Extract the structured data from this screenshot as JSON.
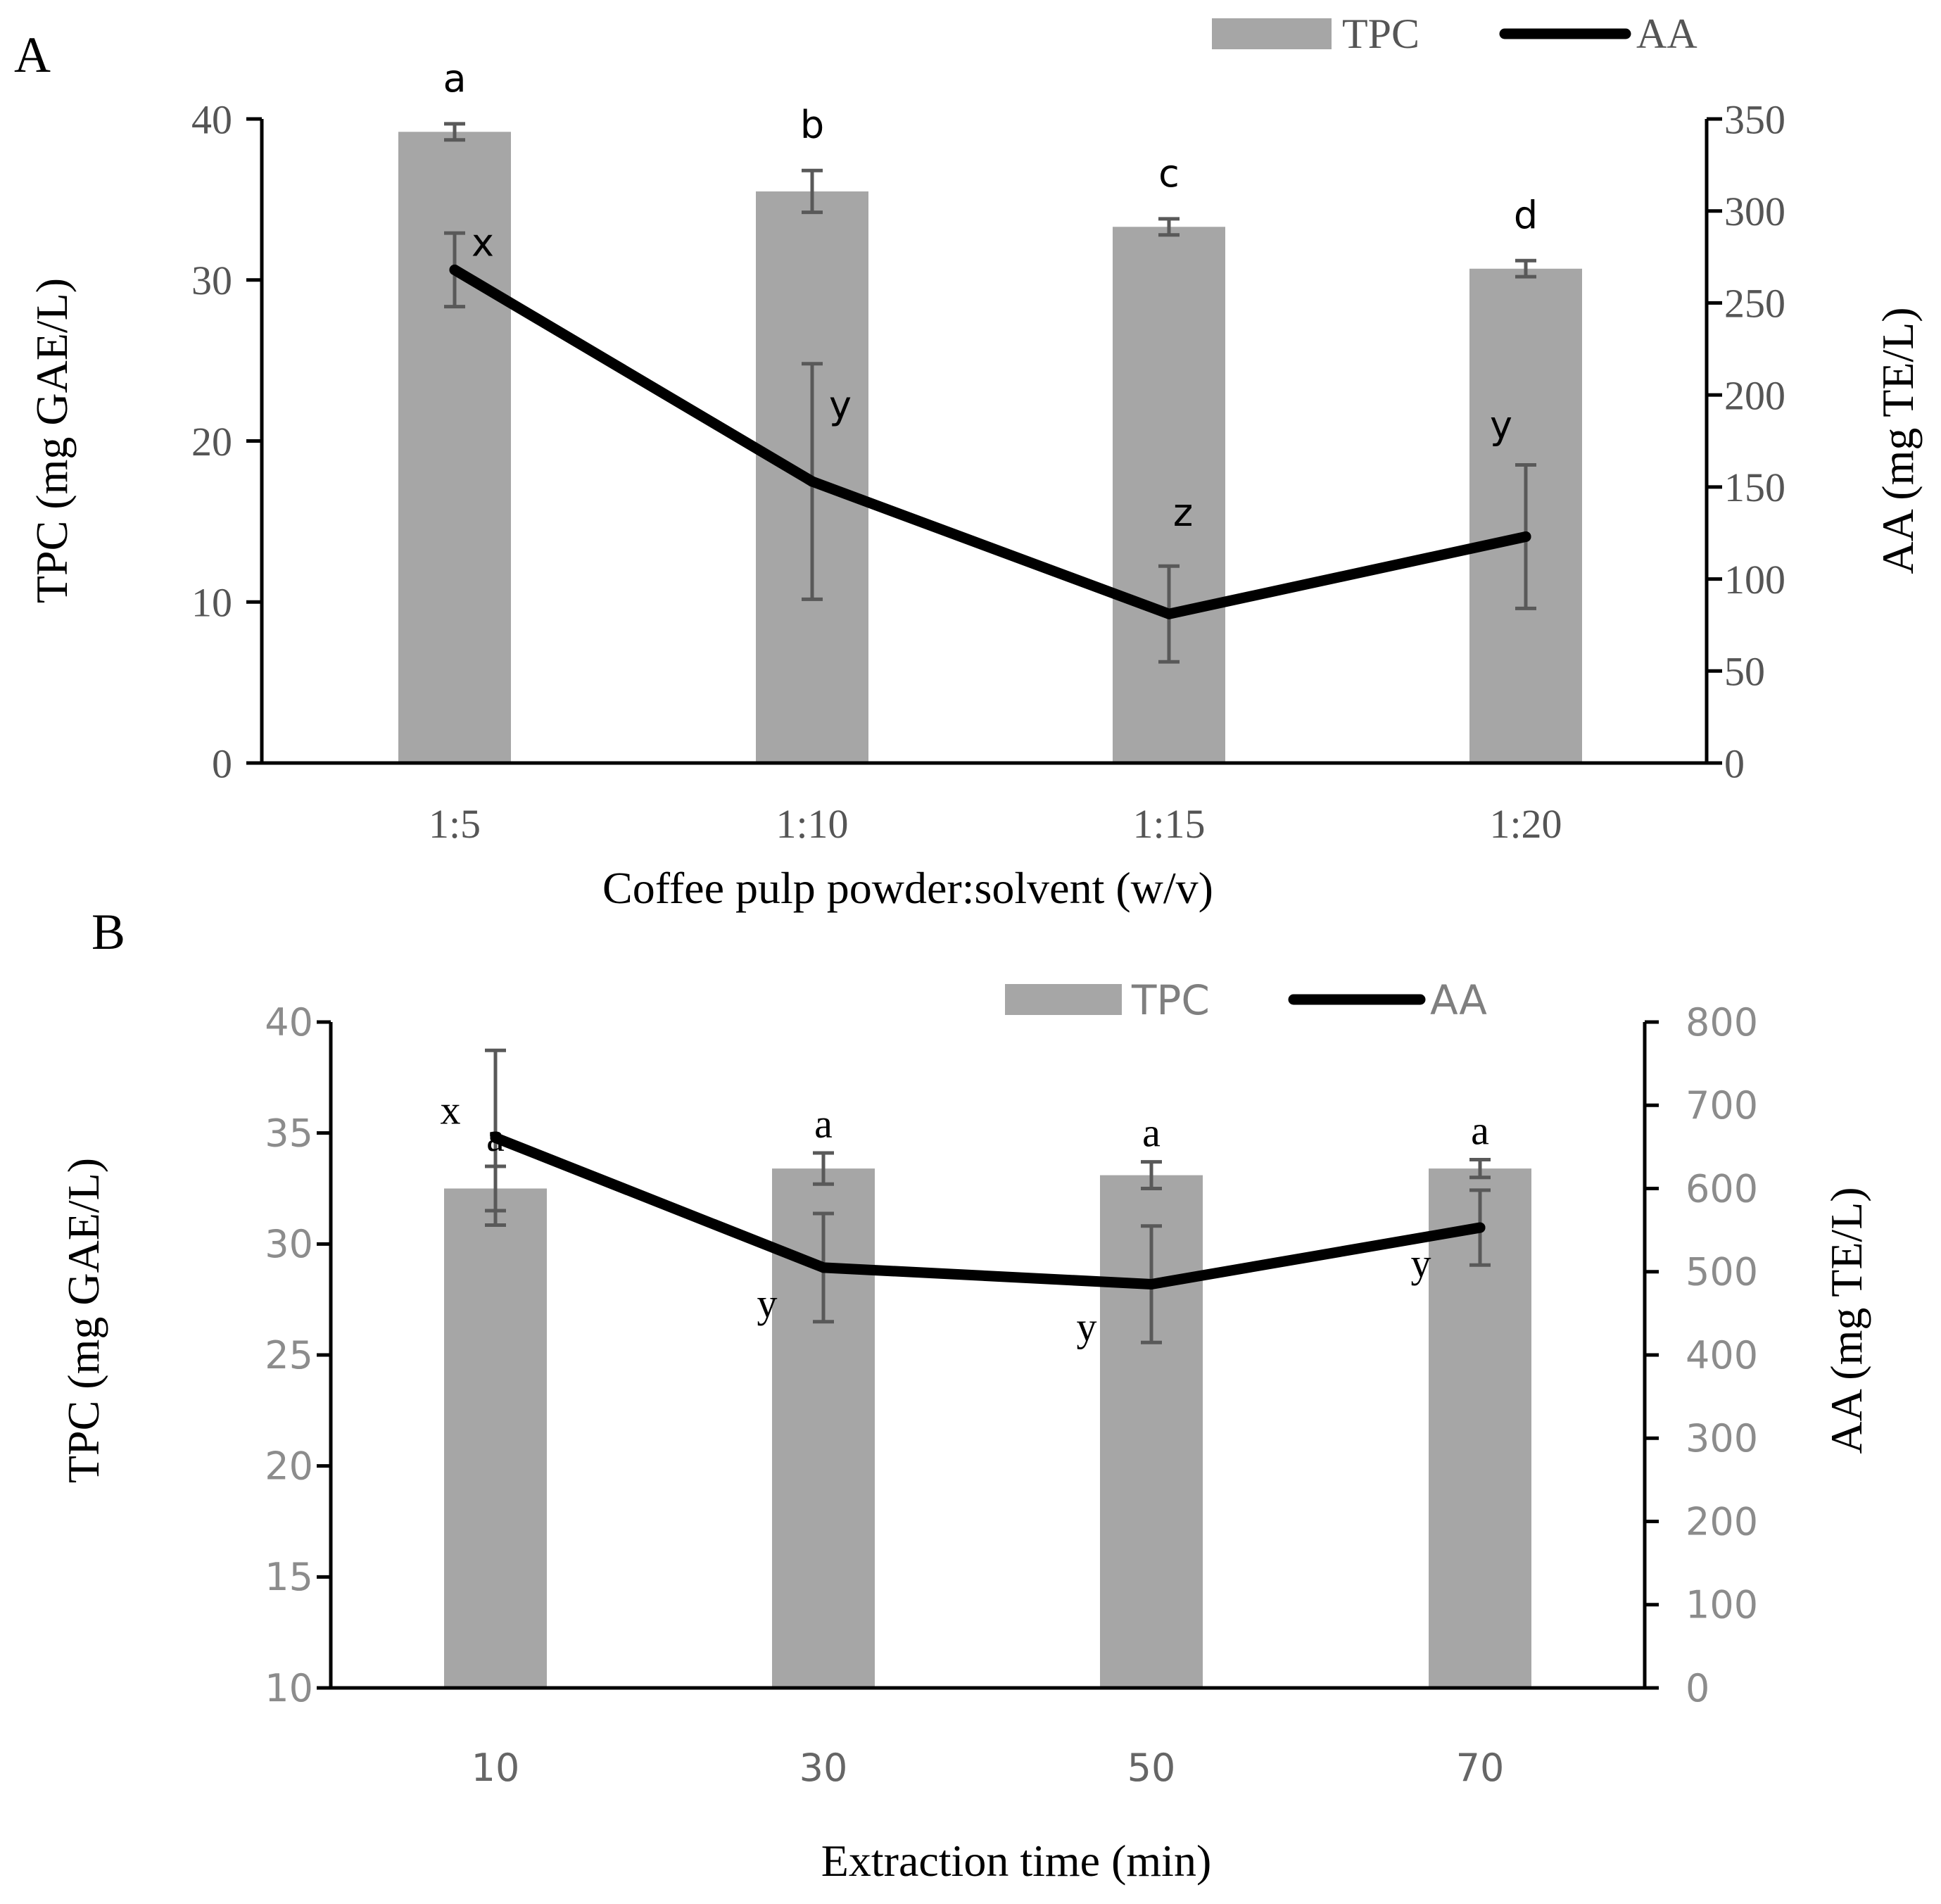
{
  "colors": {
    "bar": "#a6a6a6",
    "line": "#000000",
    "error_bar": "#595959",
    "axis": "#000000",
    "tick_label_a": "#555555",
    "tick_label_b_left": "#8c8c8c",
    "tick_label_b_right": "#8c8c8c",
    "tick_label_b_x": "#666666",
    "legend_b_text": "#7f7f7f"
  },
  "chart_data": [
    {
      "panel_label": "A",
      "type": "bar",
      "categories": [
        "1:5",
        "1:10",
        "1:15",
        "1:20"
      ],
      "xlabel": "Coffee pulp powder:solvent (w/v)",
      "ylabel": "TPC (mg GAE/L)",
      "y2label": "AA (mg TE/L)",
      "ylim": [
        0,
        40
      ],
      "yticks": [
        0,
        10,
        20,
        30,
        40
      ],
      "y2lim": [
        0,
        350
      ],
      "y2ticks": [
        0,
        50,
        100,
        150,
        200,
        250,
        300,
        350
      ],
      "legend": [
        "TPC",
        "AA"
      ],
      "legend_position": "top-right",
      "grid": false,
      "series": [
        {
          "name": "TPC",
          "type": "bar",
          "axis": "left",
          "values": [
            39.2,
            35.5,
            33.3,
            30.7
          ],
          "errors": [
            0.5,
            1.3,
            0.5,
            0.5
          ],
          "letters": [
            "a",
            "b",
            "c",
            "d"
          ]
        },
        {
          "name": "AA",
          "type": "line",
          "axis": "right",
          "values": [
            268,
            153,
            81,
            123
          ],
          "errors": [
            20,
            64,
            26,
            39
          ],
          "letters": [
            "x",
            "y",
            "z",
            "y"
          ]
        }
      ]
    },
    {
      "panel_label": "B",
      "type": "bar",
      "categories": [
        "10",
        "30",
        "50",
        "70"
      ],
      "xlabel": "Extraction time (min)",
      "ylabel": "TPC (mg GAE/L)",
      "y2label": "AA (mg TE/L)",
      "ylim": [
        10,
        40
      ],
      "yticks": [
        10,
        15,
        20,
        25,
        30,
        35,
        40
      ],
      "y2lim": [
        0,
        800
      ],
      "y2ticks": [
        0,
        100,
        200,
        300,
        400,
        500,
        600,
        700,
        800
      ],
      "legend": [
        "TPC",
        "AA"
      ],
      "legend_position": "top-right",
      "grid": false,
      "series": [
        {
          "name": "TPC",
          "type": "bar",
          "axis": "left",
          "values": [
            32.5,
            33.4,
            33.1,
            33.4
          ],
          "errors": [
            1.0,
            0.7,
            0.6,
            0.4
          ],
          "letters": [
            "a",
            "a",
            "a",
            "a"
          ]
        },
        {
          "name": "AA",
          "type": "line",
          "axis": "right",
          "values": [
            661,
            505,
            485,
            553
          ],
          "errors": [
            105,
            65,
            70,
            45
          ],
          "letters": [
            "x",
            "y",
            "y",
            "y"
          ]
        }
      ]
    }
  ]
}
